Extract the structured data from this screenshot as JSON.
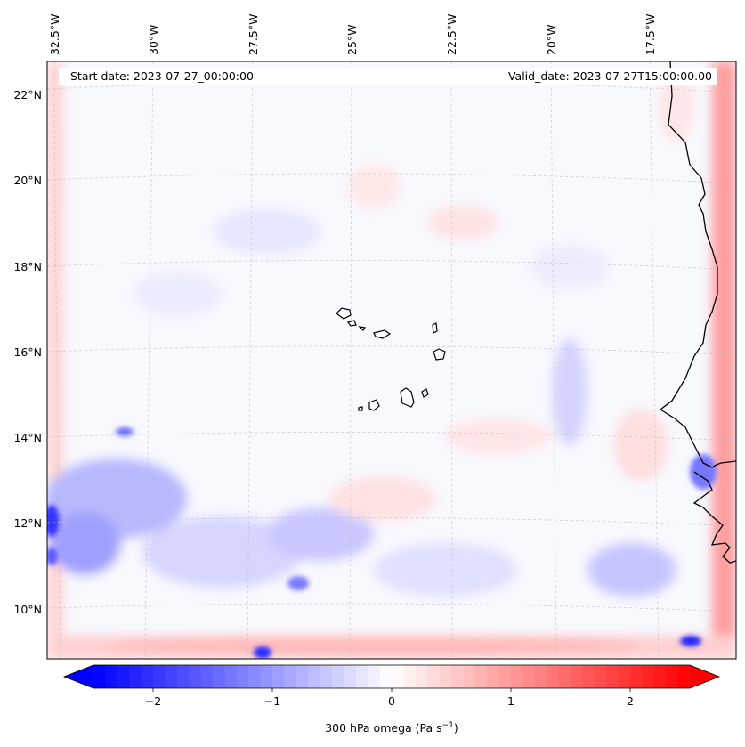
{
  "map": {
    "start_label": "Start date: 2023-07-27_00:00:00",
    "valid_label": "Valid_date: 2023-07-27T15:00:00.00",
    "lon_labels": [
      "32.5°W",
      "30°W",
      "27.5°W",
      "25°W",
      "22.5°W",
      "20°W",
      "17.5°W"
    ],
    "lat_labels": [
      "22°N",
      "20°N",
      "18°N",
      "16°N",
      "14°N",
      "12°N",
      "10°N"
    ],
    "coastline_color": "#000000",
    "gridline_style": "dashed light grey",
    "field": "300 hPa omega",
    "colormap": "bwr"
  },
  "colorbar": {
    "ticks": [
      "−2",
      "−1",
      "0",
      "1",
      "2"
    ],
    "tick_values": [
      -2,
      -1,
      0,
      1,
      2
    ],
    "range": [
      -2.5,
      2.5
    ],
    "extend": "both",
    "label": "300 hPa omega (Pa s",
    "label_sup": "−1",
    "label_end": ")",
    "min_color": "#0000ff",
    "mid_color": "#ffffff",
    "max_color": "#ff0000"
  }
}
